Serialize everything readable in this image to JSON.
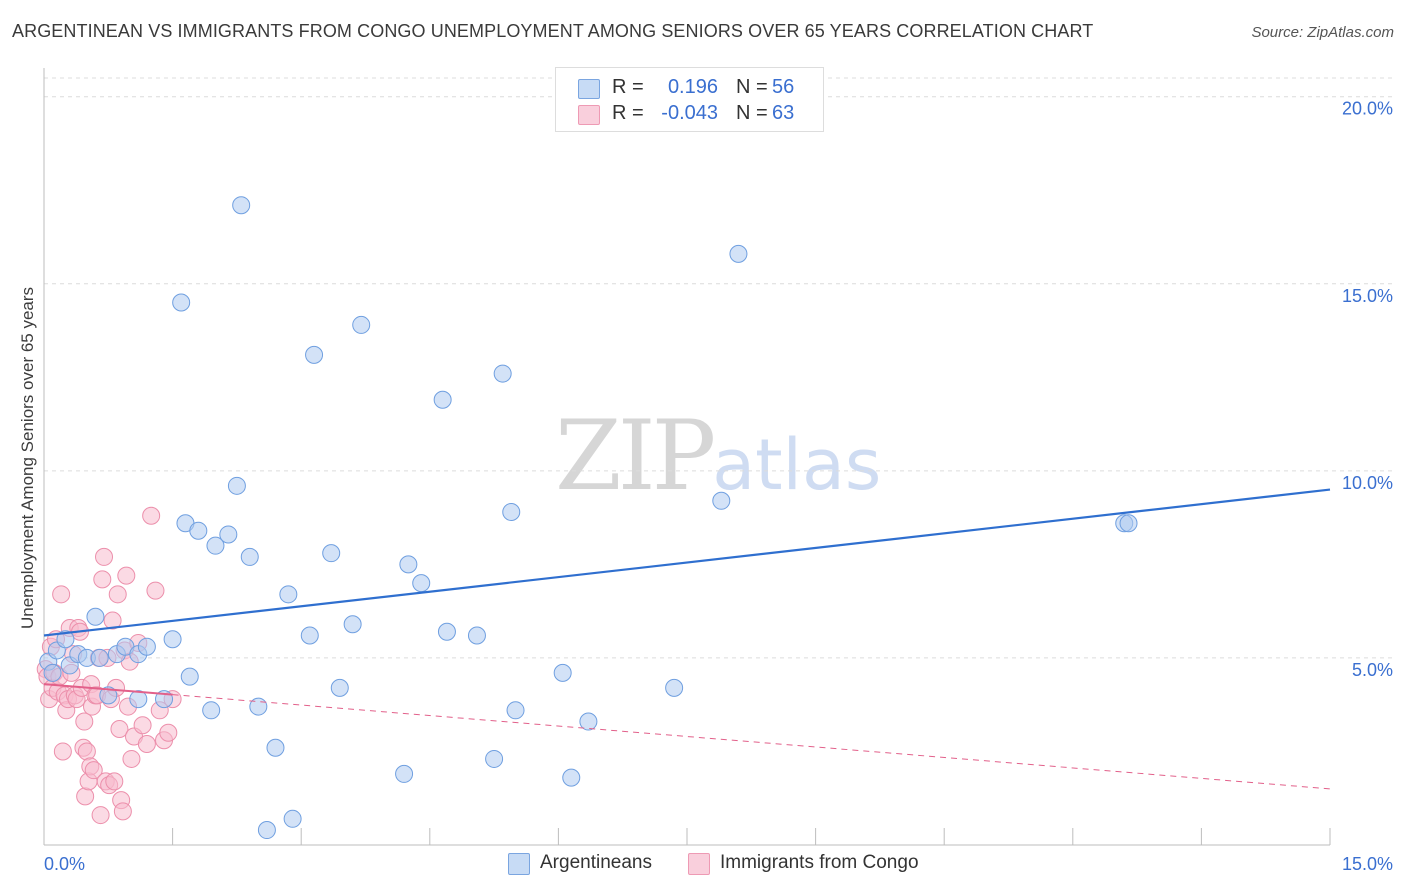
{
  "header": {
    "title": "ARGENTINEAN VS IMMIGRANTS FROM CONGO UNEMPLOYMENT AMONG SENIORS OVER 65 YEARS CORRELATION CHART",
    "source": "Source: ZipAtlas.com"
  },
  "watermark": {
    "zip": "ZIP",
    "atlas": "atlas"
  },
  "stats": {
    "argentineans": {
      "r_label": "R =",
      "r_value": "0.196",
      "n_label": "N =",
      "n_value": "56"
    },
    "congo": {
      "r_label": "R =",
      "r_value": "-0.043",
      "n_label": "N =",
      "n_value": "63"
    }
  },
  "legend": {
    "argentineans": "Argentineans",
    "congo": "Immigrants from Congo"
  },
  "colors": {
    "blue_fill": "#aecbf0",
    "blue_stroke": "#6f9fe0",
    "blue_line": "#2f6fcf",
    "pink_fill": "#f7bccd",
    "pink_stroke": "#ec8fab",
    "pink_line": "#e2608a",
    "tick_label": "#3a6fd0",
    "grid": "#dcdcdc"
  },
  "chart_data": {
    "type": "scatter",
    "title": "ARGENTINEAN VS IMMIGRANTS FROM CONGO UNEMPLOYMENT AMONG SENIORS OVER 65 YEARS CORRELATION CHART",
    "xlabel": "",
    "ylabel": "Unemployment Among Seniors over 65 years",
    "xlim": [
      0,
      15
    ],
    "ylim": [
      0,
      20.5
    ],
    "x_tick_labels": [
      "0.0%",
      "15.0%"
    ],
    "y_ticks": [
      5,
      10,
      15,
      20
    ],
    "y_tick_labels": [
      "5.0%",
      "10.0%",
      "15.0%",
      "20.0%"
    ],
    "grid": true,
    "series": [
      {
        "name": "Argentineans",
        "r": 0.196,
        "n": 56,
        "trend": {
          "x": [
            0,
            15
          ],
          "y": [
            5.6,
            9.5
          ],
          "style": "solid"
        },
        "points": [
          [
            0.05,
            4.9
          ],
          [
            0.1,
            4.6
          ],
          [
            0.15,
            5.2
          ],
          [
            0.25,
            5.5
          ],
          [
            0.3,
            4.8
          ],
          [
            0.4,
            5.1
          ],
          [
            0.5,
            5.0
          ],
          [
            0.6,
            6.1
          ],
          [
            0.65,
            5.0
          ],
          [
            0.75,
            4.0
          ],
          [
            0.85,
            5.1
          ],
          [
            0.95,
            5.3
          ],
          [
            1.1,
            5.1
          ],
          [
            1.2,
            5.3
          ],
          [
            1.1,
            3.9
          ],
          [
            1.4,
            3.9
          ],
          [
            1.5,
            5.5
          ],
          [
            1.6,
            14.5
          ],
          [
            1.65,
            8.6
          ],
          [
            1.8,
            8.4
          ],
          [
            1.7,
            4.5
          ],
          [
            1.95,
            3.6
          ],
          [
            2.0,
            8.0
          ],
          [
            2.15,
            8.3
          ],
          [
            2.25,
            9.6
          ],
          [
            2.3,
            17.1
          ],
          [
            2.4,
            7.7
          ],
          [
            2.5,
            3.7
          ],
          [
            2.6,
            0.4
          ],
          [
            2.7,
            2.6
          ],
          [
            2.85,
            6.7
          ],
          [
            2.9,
            0.7
          ],
          [
            3.1,
            5.6
          ],
          [
            3.15,
            13.1
          ],
          [
            3.35,
            7.8
          ],
          [
            3.45,
            4.2
          ],
          [
            3.6,
            5.9
          ],
          [
            3.7,
            13.9
          ],
          [
            4.2,
            1.9
          ],
          [
            4.25,
            7.5
          ],
          [
            4.4,
            7.0
          ],
          [
            4.65,
            11.9
          ],
          [
            4.7,
            5.7
          ],
          [
            5.05,
            5.6
          ],
          [
            5.25,
            2.3
          ],
          [
            5.35,
            12.6
          ],
          [
            5.45,
            8.9
          ],
          [
            5.5,
            3.6
          ],
          [
            6.05,
            4.6
          ],
          [
            6.15,
            1.8
          ],
          [
            6.35,
            3.3
          ],
          [
            7.35,
            4.2
          ],
          [
            7.9,
            9.2
          ],
          [
            8.1,
            15.8
          ],
          [
            12.6,
            8.6
          ],
          [
            12.65,
            8.6
          ]
        ]
      },
      {
        "name": "Immigrants from Congo",
        "r": -0.043,
        "n": 63,
        "trend": {
          "x": [
            0,
            15
          ],
          "y": [
            4.3,
            1.5
          ],
          "solid_until_x": 1.5,
          "style": "solid-then-dashed"
        },
        "points": [
          [
            0.02,
            4.7
          ],
          [
            0.04,
            4.5
          ],
          [
            0.06,
            3.9
          ],
          [
            0.08,
            5.3
          ],
          [
            0.1,
            4.2
          ],
          [
            0.12,
            4.6
          ],
          [
            0.14,
            5.5
          ],
          [
            0.16,
            4.1
          ],
          [
            0.18,
            4.5
          ],
          [
            0.2,
            6.7
          ],
          [
            0.22,
            2.5
          ],
          [
            0.24,
            4.0
          ],
          [
            0.26,
            3.6
          ],
          [
            0.28,
            3.9
          ],
          [
            0.3,
            5.8
          ],
          [
            0.32,
            4.6
          ],
          [
            0.34,
            5.1
          ],
          [
            0.36,
            4.0
          ],
          [
            0.38,
            3.9
          ],
          [
            0.4,
            5.8
          ],
          [
            0.42,
            5.7
          ],
          [
            0.44,
            4.2
          ],
          [
            0.46,
            2.6
          ],
          [
            0.47,
            3.3
          ],
          [
            0.48,
            1.3
          ],
          [
            0.5,
            2.5
          ],
          [
            0.52,
            1.7
          ],
          [
            0.54,
            2.1
          ],
          [
            0.55,
            4.3
          ],
          [
            0.56,
            3.7
          ],
          [
            0.58,
            2.0
          ],
          [
            0.6,
            4.0
          ],
          [
            0.62,
            4.0
          ],
          [
            0.64,
            5.0
          ],
          [
            0.66,
            0.8
          ],
          [
            0.68,
            7.1
          ],
          [
            0.7,
            7.7
          ],
          [
            0.72,
            1.7
          ],
          [
            0.74,
            5.0
          ],
          [
            0.76,
            1.6
          ],
          [
            0.78,
            3.9
          ],
          [
            0.8,
            6.0
          ],
          [
            0.82,
            1.7
          ],
          [
            0.84,
            4.2
          ],
          [
            0.86,
            6.7
          ],
          [
            0.88,
            3.1
          ],
          [
            0.9,
            1.2
          ],
          [
            0.92,
            0.9
          ],
          [
            0.94,
            5.2
          ],
          [
            0.96,
            7.2
          ],
          [
            0.98,
            3.7
          ],
          [
            1.0,
            4.9
          ],
          [
            1.02,
            2.3
          ],
          [
            1.05,
            2.9
          ],
          [
            1.1,
            5.4
          ],
          [
            1.15,
            3.2
          ],
          [
            1.2,
            2.7
          ],
          [
            1.25,
            8.8
          ],
          [
            1.3,
            6.8
          ],
          [
            1.35,
            3.6
          ],
          [
            1.4,
            2.8
          ],
          [
            1.45,
            3.0
          ],
          [
            1.5,
            3.9
          ]
        ]
      }
    ]
  }
}
